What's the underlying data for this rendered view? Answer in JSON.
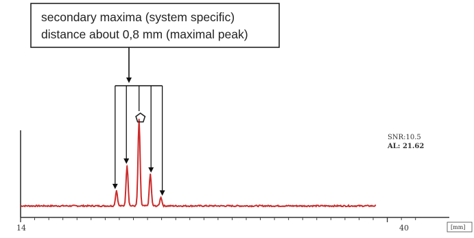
{
  "chart_data": {
    "type": "line",
    "title": "",
    "xlabel": "",
    "ylabel": "",
    "x_unit_label": "[mm]",
    "xlim": [
      14,
      42.5
    ],
    "ylim": [
      0,
      1
    ],
    "x_tick_labels": [
      {
        "x": 14,
        "label": "14"
      },
      {
        "x": 40,
        "label": "40"
      }
    ],
    "series": [
      {
        "color": "#cc2b2b",
        "baseline": 0.03,
        "peaks": [
          {
            "x": 20.8,
            "y": 0.17
          },
          {
            "x": 21.55,
            "y": 0.4
          },
          {
            "x": 22.4,
            "y": 0.82
          },
          {
            "x": 23.2,
            "y": 0.32
          },
          {
            "x": 23.95,
            "y": 0.11
          }
        ],
        "x_end": 39.2
      }
    ],
    "annotations": {
      "callout_lines": [
        "secondary maxima (system specific)",
        "distance about 0,8 mm (maximal peak)"
      ],
      "main_peak_marker": "pentagon",
      "snr_label": "SNR:10.5",
      "al_label": "AL: 21.62"
    },
    "grid": false,
    "legend": "none"
  }
}
